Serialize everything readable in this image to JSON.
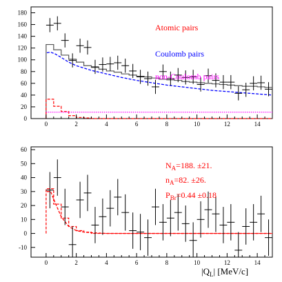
{
  "chart_data": [
    {
      "type": "line",
      "panel": "top",
      "xlim": [
        -1,
        15
      ],
      "ylim": [
        0,
        190
      ],
      "x_ticks": [
        0,
        2,
        4,
        6,
        8,
        10,
        12,
        14
      ],
      "y_ticks": [
        0,
        20,
        40,
        60,
        80,
        100,
        120,
        140,
        160,
        180
      ],
      "legend": [
        {
          "label": "Atomic pairs",
          "color": "#ff0000"
        },
        {
          "label": "Coulomb pairs",
          "color": "#0000ff"
        },
        {
          "label": "non-Coulomb pairs",
          "color": "#ff00ff"
        }
      ],
      "data_points": {
        "x": [
          0.25,
          0.75,
          1.25,
          1.75,
          2.25,
          2.75,
          3.25,
          3.75,
          4.25,
          4.75,
          5.25,
          5.75,
          6.25,
          6.75,
          7.25,
          7.75,
          8.25,
          8.75,
          9.25,
          9.75,
          10.25,
          10.75,
          11.25,
          11.75,
          12.25,
          12.75,
          13.25,
          13.75,
          14.25,
          14.75
        ],
        "y": [
          159,
          162,
          133,
          99,
          124,
          121,
          88,
          92,
          93,
          95,
          90,
          81,
          71,
          68,
          54,
          80,
          68,
          74,
          70,
          71,
          58,
          73,
          65,
          62,
          62,
          43,
          49,
          60,
          61,
          50
        ],
        "yerr": 12
      },
      "series": [
        {
          "kind": "histogram",
          "color": "#555555",
          "values": [
            126,
            117,
            108,
            101,
            96,
            90,
            87,
            84,
            81,
            79,
            76,
            74,
            72,
            71,
            69,
            67,
            66,
            65,
            63,
            62,
            61,
            60,
            59,
            58,
            57,
            56,
            55,
            55,
            54,
            53
          ]
        },
        {
          "kind": "curve",
          "color": "#0000ff",
          "dashed": true,
          "x": [
            0.05,
            0.3,
            0.6,
            1,
            1.5,
            2,
            3,
            4,
            5,
            6,
            7,
            8,
            9,
            10,
            11,
            12,
            13,
            14,
            15
          ],
          "y": [
            112,
            113,
            110,
            104,
            96,
            90,
            82,
            76,
            70,
            65,
            61,
            57,
            54,
            51,
            48,
            46,
            44,
            42,
            40
          ]
        },
        {
          "kind": "histogram",
          "color": "#ff0000",
          "dashed": true,
          "values": [
            33,
            21,
            12,
            5,
            2,
            1,
            0,
            0,
            0,
            0,
            0,
            0,
            0,
            0,
            0,
            0,
            0,
            0,
            0,
            0,
            0,
            0,
            0,
            0,
            0,
            0,
            0,
            0,
            0,
            0
          ]
        },
        {
          "kind": "hline",
          "color": "#ff00ff",
          "dotted": true,
          "value": 11
        }
      ]
    },
    {
      "type": "line",
      "panel": "bottom",
      "xlim": [
        -1,
        15
      ],
      "ylim": [
        -17,
        62
      ],
      "x_ticks": [
        0,
        2,
        4,
        6,
        8,
        10,
        12,
        14
      ],
      "y_ticks": [
        -10,
        0,
        10,
        20,
        30,
        40,
        50,
        60
      ],
      "xlabel": "|Q_L| [MeV/c]",
      "annotations": [
        {
          "key": "N_A",
          "sub": "A",
          "main": "N",
          "text": "=188. ±21."
        },
        {
          "key": "n_A",
          "sub": "A",
          "main": "n",
          "text": "=82. ±26."
        },
        {
          "key": "P_Br",
          "sub": "Br",
          "main": "P",
          "text": "=0.44 ±0.18"
        }
      ],
      "data_points": {
        "x": [
          0.25,
          0.75,
          1.25,
          1.75,
          2.25,
          2.75,
          3.25,
          3.75,
          4.25,
          4.75,
          5.25,
          5.75,
          6.25,
          6.75,
          7.25,
          7.75,
          8.25,
          8.75,
          9.25,
          9.75,
          10.25,
          10.75,
          11.25,
          11.75,
          12.25,
          12.75,
          13.25,
          13.75,
          14.25,
          14.75
        ],
        "y": [
          31,
          40,
          19,
          -8,
          24,
          29,
          6,
          12,
          18,
          26,
          15,
          2,
          1,
          -3,
          19,
          8,
          11,
          15,
          7,
          -5,
          10,
          17,
          14,
          6,
          8,
          -12,
          5,
          8,
          14,
          -3
        ],
        "yerr": 13
      },
      "series": [
        {
          "kind": "histogram",
          "color": "#ff0000",
          "dashed": true,
          "values": [
            32,
            21,
            11,
            5,
            2,
            1,
            0,
            0,
            0,
            0,
            0,
            0,
            0,
            0,
            0,
            0,
            0,
            0,
            0,
            0,
            0,
            0,
            0,
            0,
            0,
            0,
            0,
            0,
            0,
            0
          ]
        },
        {
          "kind": "curve",
          "color": "#ff0000",
          "dashed": true,
          "x": [
            0.05,
            0.3,
            0.6,
            1,
            1.5,
            2,
            2.5,
            3,
            4,
            5,
            6,
            8,
            10,
            12,
            15
          ],
          "y": [
            30,
            30,
            22,
            12,
            5,
            2,
            1,
            0.5,
            0,
            0,
            0,
            0,
            0,
            0,
            0
          ]
        }
      ]
    }
  ]
}
